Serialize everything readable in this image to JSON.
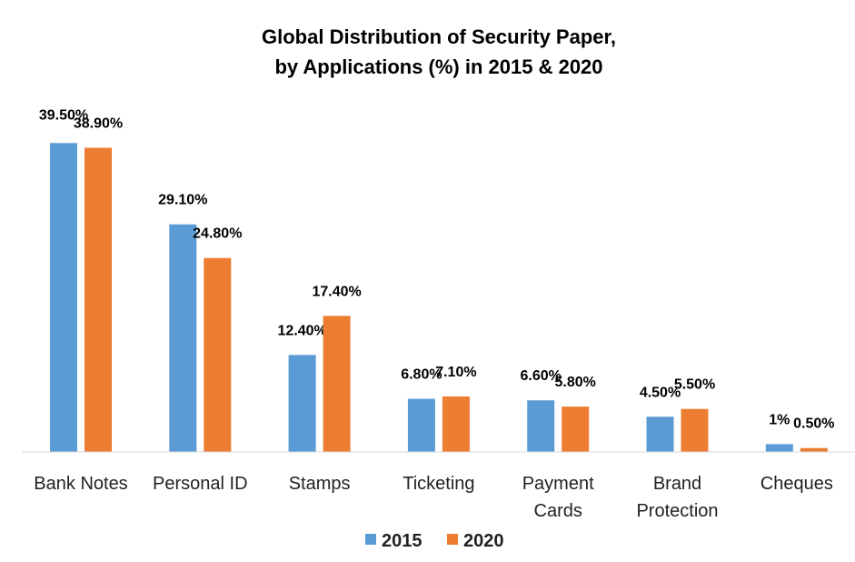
{
  "chart_data": {
    "type": "bar",
    "title": [
      "Global Distribution of Security Paper,",
      "by Applications (%) in 2015 & 2020"
    ],
    "categories": [
      [
        "Bank Notes"
      ],
      [
        "Personal ID"
      ],
      [
        "Stamps"
      ],
      [
        "Ticketing"
      ],
      [
        "Payment",
        "Cards"
      ],
      [
        "Brand",
        "Protection"
      ],
      [
        "Cheques"
      ]
    ],
    "series": [
      {
        "name": "2015",
        "color": "#5B9BD5",
        "values": [
          39.5,
          29.1,
          12.4,
          6.8,
          6.6,
          4.5,
          1
        ],
        "labels": [
          "39.50%",
          "29.10%",
          "12.40%",
          "6.80%",
          "6.60%",
          "4.50%",
          "1%"
        ]
      },
      {
        "name": "2020",
        "color": "#ED7D31",
        "values": [
          38.9,
          24.8,
          17.4,
          7.1,
          5.8,
          5.5,
          0.5
        ],
        "labels": [
          "38.90%",
          "24.80%",
          "17.40%",
          "7.10%",
          "5.80%",
          "5.50%",
          "0.50%"
        ]
      }
    ],
    "xlabel": "",
    "ylabel": "",
    "ylim": [
      0,
      40
    ],
    "y_axis_visible": false,
    "grid": false,
    "legend": "bottom"
  }
}
